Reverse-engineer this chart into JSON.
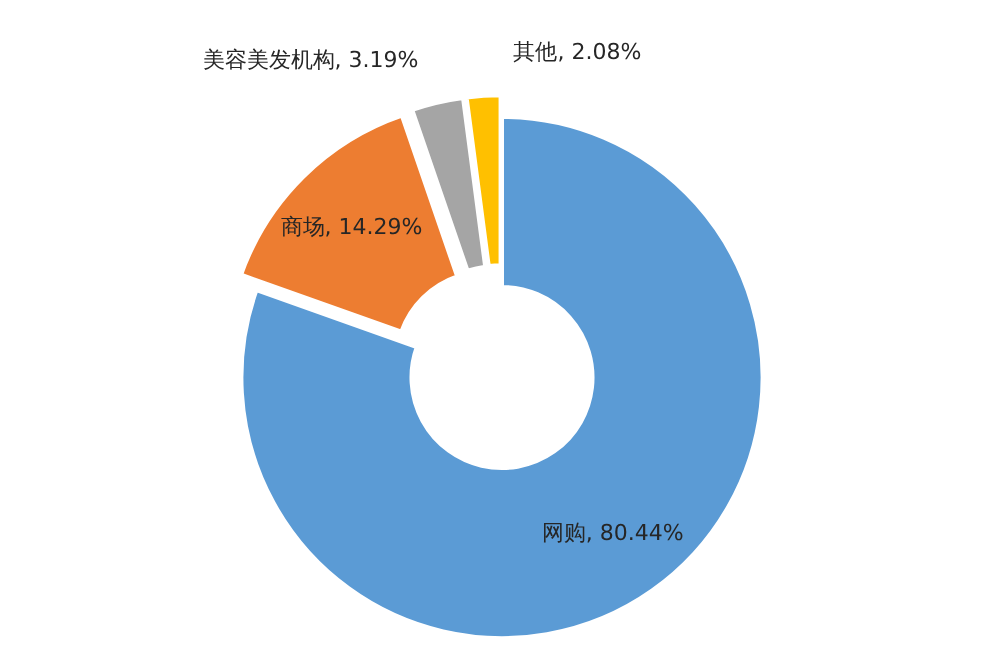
{
  "chart_data": {
    "type": "donut",
    "categories": [
      "网购",
      "商场",
      "美容美发机构",
      "其他"
    ],
    "values": [
      80.44,
      14.29,
      3.19,
      2.08
    ],
    "value_labels": [
      "80.44%",
      "14.29%",
      "3.19%",
      "2.08%"
    ],
    "colors": [
      "#5b9bd5",
      "#ed7d31",
      "#a5a5a5",
      "#ffc000"
    ]
  }
}
